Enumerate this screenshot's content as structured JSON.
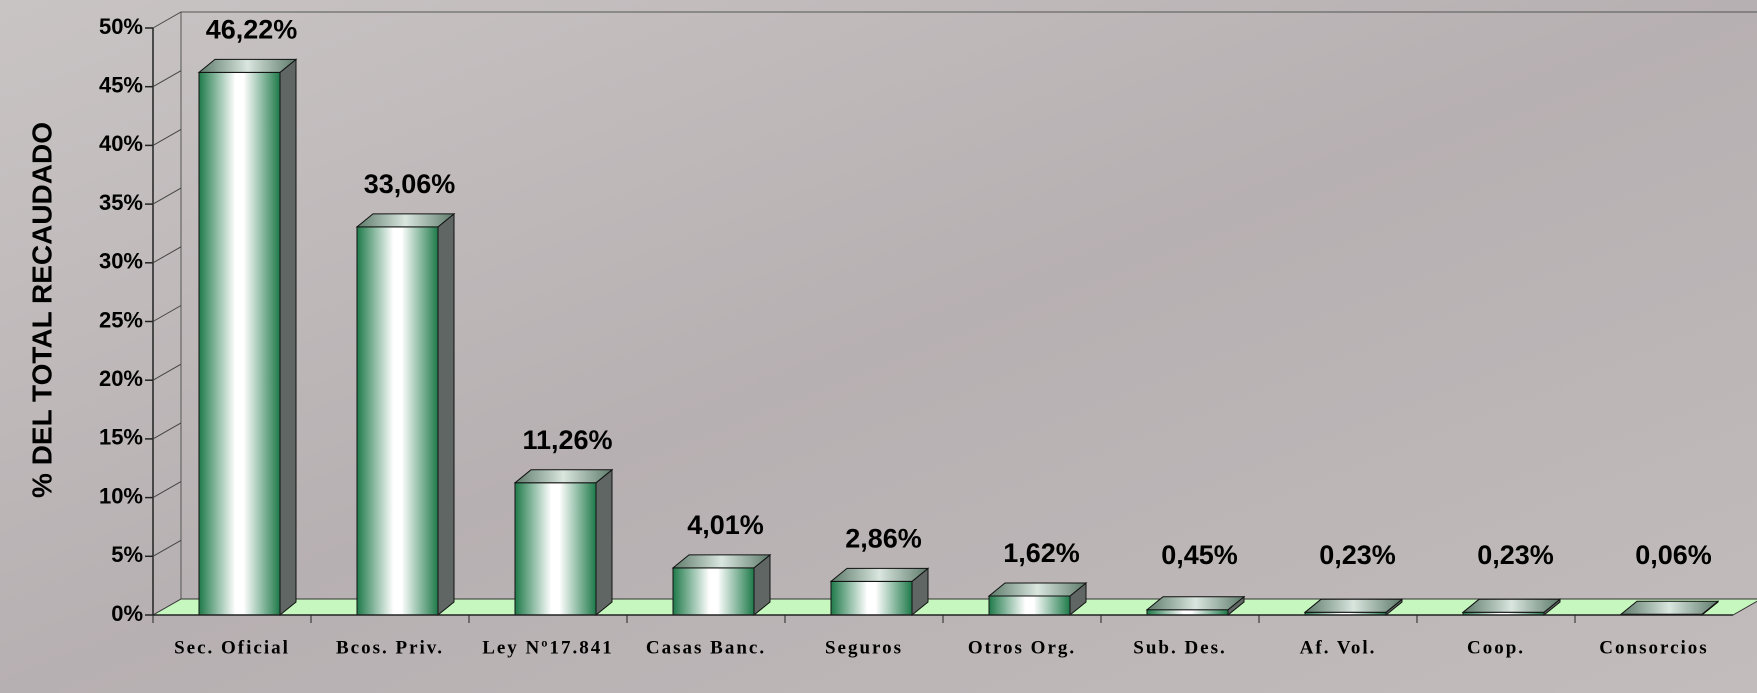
{
  "chart_data": {
    "type": "bar3d",
    "y_label": "% DEL TOTAL RECAUDADO",
    "categories": [
      "Sec. Oficial",
      "Bcos. Priv.",
      "Ley Nº17.841",
      "Casas Banc.",
      "Seguros",
      "Otros Org.",
      "Sub. Des.",
      "Af. Vol.",
      "Coop.",
      "Consorcios"
    ],
    "values": [
      46.22,
      33.06,
      11.26,
      4.01,
      2.86,
      1.62,
      0.45,
      0.23,
      0.23,
      0.06
    ],
    "value_labels": [
      "46,22%",
      "33,06%",
      "11,26%",
      "4,01%",
      "2,86%",
      "1,62%",
      "0,45%",
      "0,23%",
      "0,23%",
      "0,06%"
    ],
    "color": "#1f7a4a",
    "ylim": [
      0,
      50
    ],
    "yticks": [
      {
        "value": 0,
        "label": "0%"
      },
      {
        "value": 5,
        "label": "5%"
      },
      {
        "value": 10,
        "label": "10%"
      },
      {
        "value": 15,
        "label": "15%"
      },
      {
        "value": 20,
        "label": "20%"
      },
      {
        "value": 25,
        "label": "25%"
      },
      {
        "value": 30,
        "label": "30%"
      },
      {
        "value": 35,
        "label": "35%"
      },
      {
        "value": 40,
        "label": "40%"
      },
      {
        "value": 45,
        "label": "45%"
      },
      {
        "value": 50,
        "label": "50%"
      }
    ],
    "floor_color": "#c6f7bf"
  }
}
